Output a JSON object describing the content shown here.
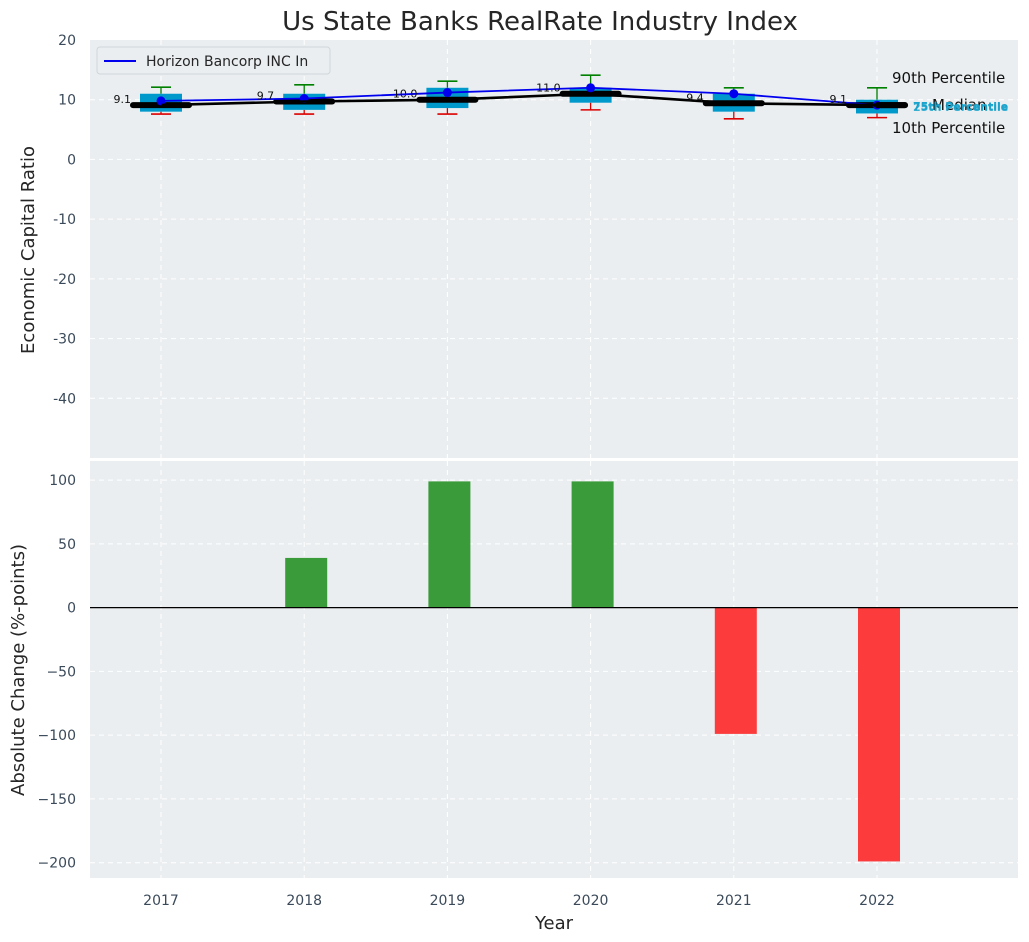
{
  "chart_data": [
    {
      "type": "box",
      "title": "Us State Banks RealRate Industry Index",
      "ylabel": "Economic Capital Ratio",
      "ylim": [
        -50,
        20
      ],
      "yticks": [
        20,
        10,
        0,
        -10,
        -20,
        -30,
        -40
      ],
      "grid": true,
      "legend": {
        "position": "top-left",
        "entries": [
          "Horizon Bancorp INC In"
        ]
      },
      "categories": [
        "2017",
        "2018",
        "2019",
        "2020",
        "2021",
        "2022"
      ],
      "boxes": [
        {
          "p10": 7.6,
          "p25": 8.0,
          "median": 9.1,
          "p75": 11.0,
          "p90": 12.1
        },
        {
          "p10": 7.6,
          "p25": 8.3,
          "median": 9.7,
          "p75": 11.0,
          "p90": 12.5
        },
        {
          "p10": 7.6,
          "p25": 8.6,
          "median": 10.0,
          "p75": 12.0,
          "p90": 13.1
        },
        {
          "p10": 8.3,
          "p25": 9.5,
          "median": 11.0,
          "p75": 12.0,
          "p90": 14.1
        },
        {
          "p10": 6.8,
          "p25": 8.0,
          "median": 9.4,
          "p75": 11.0,
          "p90": 12.0
        },
        {
          "p10": 7.0,
          "p25": 7.7,
          "median": 9.1,
          "p75": 10.0,
          "p90": 12.0
        }
      ],
      "median_labels": [
        "9.1",
        "9.7",
        "10.0",
        "11.0",
        "9.4",
        "9.1"
      ],
      "series": [
        {
          "name": "Horizon Bancorp INC In",
          "color": "#0000ee",
          "values": [
            9.8,
            10.2,
            11.2,
            12.0,
            11.0,
            9.1
          ]
        },
        {
          "name": "Median",
          "color": "#000000",
          "values": [
            9.1,
            9.7,
            10.0,
            11.0,
            9.4,
            9.1
          ]
        }
      ],
      "annotations": [
        "90th Percentile",
        "Median",
        "10th Percentile",
        "75th Percentile",
        "25th Percentile"
      ]
    },
    {
      "type": "bar",
      "xlabel": "Year",
      "ylabel": "Absolute Change (%-points)",
      "ylim": [
        -212,
        115
      ],
      "yticks": [
        100,
        50,
        0,
        -50,
        -100,
        -150,
        -200
      ],
      "categories": [
        "2017",
        "2018",
        "2019",
        "2020",
        "2021",
        "2022"
      ],
      "values": [
        0,
        39,
        99,
        99,
        -99,
        -199
      ],
      "positive_color": "#3a9b3a",
      "negative_color": "#fc3c3c"
    }
  ],
  "colors": {
    "panel_bg": "#eaeef0",
    "box_fill": "#0099cc",
    "whisker_top": "#008000",
    "whisker_bottom": "#dd0000",
    "grid": "#ffffff",
    "percentile_label": "#1aa3cc"
  }
}
